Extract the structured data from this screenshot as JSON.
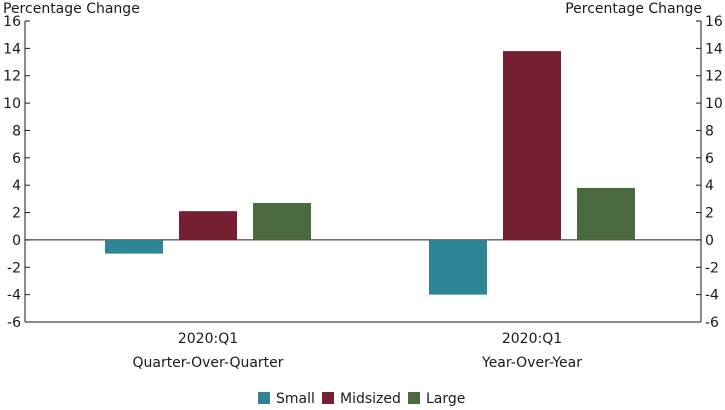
{
  "chart_data": {
    "type": "bar",
    "left_axis_title": "Percentage Change",
    "right_axis_title": "Percentage Change",
    "categories": [
      {
        "line1": "2020:Q1",
        "line2": "Quarter-Over-Quarter"
      },
      {
        "line1": "2020:Q1",
        "line2": "Year-Over-Year"
      }
    ],
    "series": [
      {
        "name": "Small",
        "color": "#2e8596",
        "values": [
          -1.0,
          -4.0
        ]
      },
      {
        "name": "Midsized",
        "color": "#761f32",
        "values": [
          2.1,
          13.8
        ]
      },
      {
        "name": "Large",
        "color": "#4b6a40",
        "values": [
          2.7,
          3.8
        ]
      }
    ],
    "ylim": [
      -6,
      16
    ],
    "yticks": [
      -6,
      -4,
      -2,
      0,
      2,
      4,
      6,
      8,
      10,
      12,
      14,
      16
    ],
    "grid": false,
    "legend_position": "bottom-center"
  }
}
